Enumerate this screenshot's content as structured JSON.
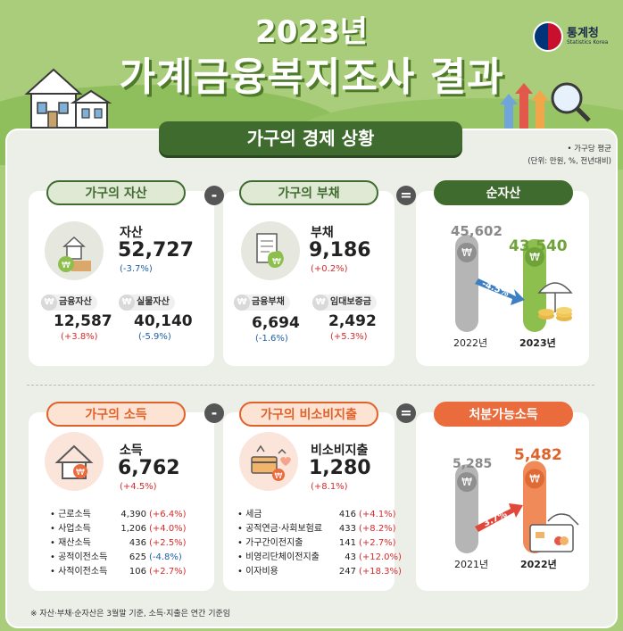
{
  "header": {
    "year": "2023년",
    "title": "가계금융복지조사 결과",
    "logo_name": "통계청",
    "logo_sub": "Statistics Korea"
  },
  "section": {
    "title": "가구의 경제 상황",
    "note_line1": "• 가구당 평균",
    "note_line2": "(단위: 만원, %, 전년대비)"
  },
  "assets": {
    "tab": "가구의 자산",
    "label": "자산",
    "value": "52,727",
    "change": "(-3.7%)",
    "items": [
      {
        "label": "금융자산",
        "value": "12,587",
        "change": "(+3.8%)"
      },
      {
        "label": "실물자산",
        "value": "40,140",
        "change": "(-5.9%)"
      }
    ]
  },
  "debt": {
    "tab": "가구의 부채",
    "label": "부채",
    "value": "9,186",
    "change": "(+0.2%)",
    "items": [
      {
        "label": "금융부채",
        "value": "6,694",
        "change": "(-1.6%)"
      },
      {
        "label": "임대보증금",
        "value": "2,492",
        "change": "(+5.3%)"
      }
    ]
  },
  "net_assets": {
    "tab": "순자산",
    "bars": [
      {
        "year": "2022년",
        "value": 45602,
        "label": "45,602"
      },
      {
        "year": "2023년",
        "value": 43540,
        "label": "43,540"
      }
    ],
    "change": "-4.5%"
  },
  "income": {
    "tab": "가구의 소득",
    "label": "소득",
    "value": "6,762",
    "change": "(+4.5%)",
    "items": [
      {
        "label": "근로소득",
        "value": "4,390",
        "change": "(+6.4%)"
      },
      {
        "label": "사업소득",
        "value": "1,206",
        "change": "(+4.0%)"
      },
      {
        "label": "재산소득",
        "value": "436",
        "change": "(+2.5%)"
      },
      {
        "label": "공적이전소득",
        "value": "625",
        "change": "(-4.8%)"
      },
      {
        "label": "사적이전소득",
        "value": "106",
        "change": "(+2.7%)"
      }
    ]
  },
  "non_consumption": {
    "tab": "가구의 비소비지출",
    "label": "비소비지출",
    "value": "1,280",
    "change": "(+8.1%)",
    "items": [
      {
        "label": "세금",
        "value": "416",
        "change": "(+4.1%)"
      },
      {
        "label": "공적연금·사회보험료",
        "value": "433",
        "change": "(+8.2%)"
      },
      {
        "label": "가구간이전지출",
        "value": "141",
        "change": "(+2.7%)"
      },
      {
        "label": "비영리단체이전지출",
        "value": "43",
        "change": "(+12.0%)"
      },
      {
        "label": "이자비용",
        "value": "247",
        "change": "(+18.3%)"
      }
    ]
  },
  "disposable": {
    "tab": "처분가능소득",
    "bars": [
      {
        "year": "2021년",
        "value": 5285,
        "label": "5,285"
      },
      {
        "year": "2022년",
        "value": 5482,
        "label": "5,482"
      }
    ],
    "change": "3.7%"
  },
  "ops": {
    "minus": "-",
    "equals": "="
  },
  "won_symbol": "₩",
  "footnote": "※ 자산·부채·순자산은 3월말 기준, 소득·지출은 연간 기준임",
  "colors": {
    "green": "#3f6b2f",
    "orange": "#ea6b3c",
    "blue": "#1e5fa8",
    "red": "#d62b2b"
  }
}
